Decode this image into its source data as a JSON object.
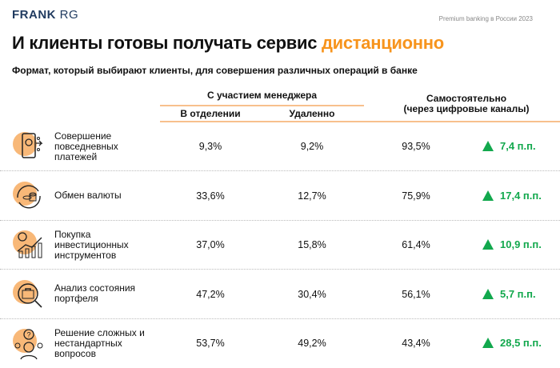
{
  "header": {
    "logo_bold": "FRANK",
    "logo_light": "RG",
    "report": "Premium banking в России 2023"
  },
  "title": {
    "main": "И клиенты готовы получать сервис ",
    "accent": "дистанционно"
  },
  "subtitle": "Формат, который выбирают клиенты, для совершения различных операций в банке",
  "columns": {
    "group": "С участием менеджера",
    "branch": "В отделении",
    "remote": "Удаленно",
    "self_1": "Самостоятельно",
    "self_2": "(через цифровые каналы)"
  },
  "colors": {
    "accent": "#f7941d",
    "positive": "#12a84d",
    "icon_bg": "#f8b878"
  },
  "rows": [
    {
      "name": "Совершение повседневных платежей",
      "icon": "mobile-payment-icon",
      "branch": "9,3%",
      "remote": "9,2%",
      "self": "93,5%",
      "delta": "7,4 п.п."
    },
    {
      "name": "Обмен валюты",
      "icon": "currency-exchange-icon",
      "branch": "33,6%",
      "remote": "12,7%",
      "self": "75,9%",
      "delta": "17,4 п.п."
    },
    {
      "name": "Покупка инвестиционных инструментов",
      "icon": "investment-growth-icon",
      "branch": "37,0%",
      "remote": "15,8%",
      "self": "61,4%",
      "delta": "10,9 п.п."
    },
    {
      "name": "Анализ состояния портфеля",
      "icon": "portfolio-magnifier-icon",
      "branch": "47,2%",
      "remote": "30,4%",
      "self": "56,1%",
      "delta": "5,7 п.п."
    },
    {
      "name": "Решение сложных и нестандартных вопросов",
      "icon": "question-person-icon",
      "branch": "53,7%",
      "remote": "49,2%",
      "self": "43,4%",
      "delta": "28,5 п.п."
    }
  ]
}
